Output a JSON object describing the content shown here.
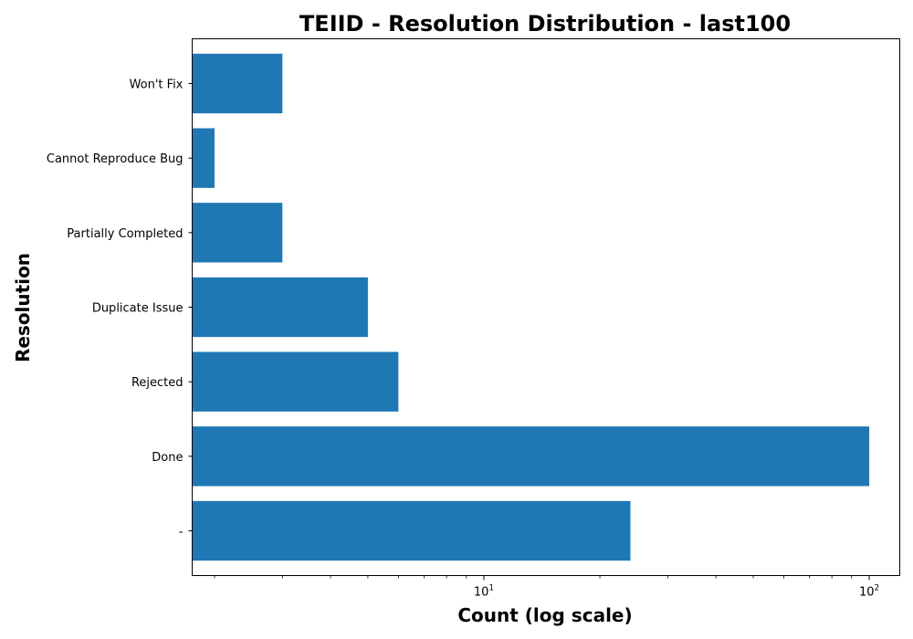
{
  "chart_data": {
    "type": "bar",
    "orientation": "horizontal",
    "title": "TEIID - Resolution Distribution - last100",
    "xlabel": "Count (log scale)",
    "ylabel": "Resolution",
    "x_scale": "log",
    "xlim": [
      1.75,
      120
    ],
    "x_ticks": [
      {
        "value": 10,
        "base": "10",
        "exp": "1"
      },
      {
        "value": 100,
        "base": "10",
        "exp": "2"
      }
    ],
    "categories": [
      "-",
      "Done",
      "Rejected",
      "Duplicate Issue",
      "Partially Completed",
      "Cannot Reproduce Bug",
      "Won't Fix"
    ],
    "values": [
      24,
      100,
      6,
      5,
      3,
      2,
      3
    ],
    "bar_color": "#1f77b4",
    "grid": false,
    "legend": "none"
  }
}
